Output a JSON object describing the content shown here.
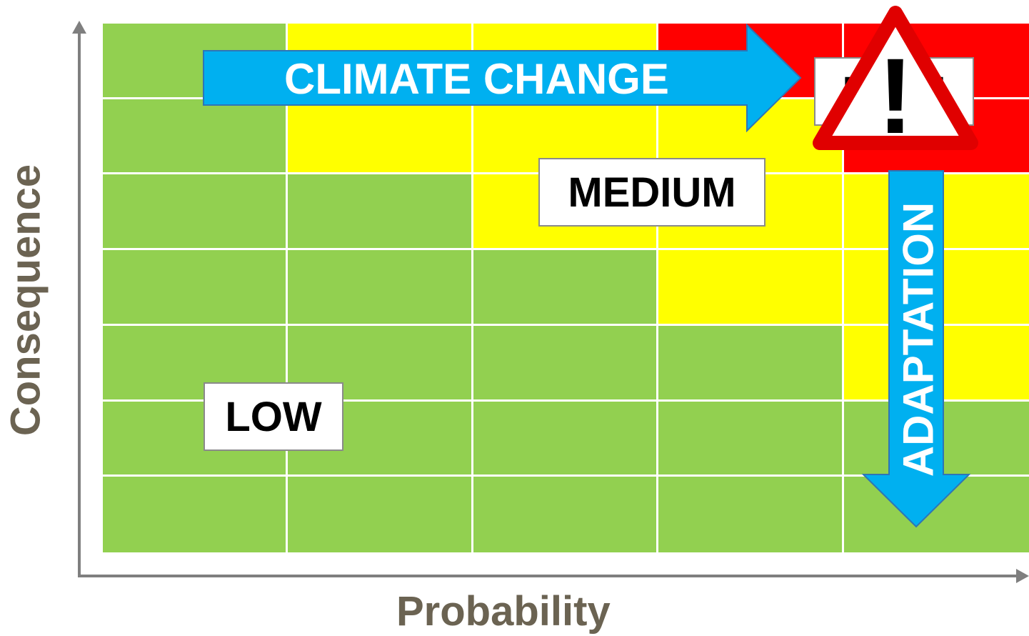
{
  "axes": {
    "x_title": "Probability",
    "y_title": "Consequence"
  },
  "matrix": {
    "cols": 5,
    "rows": 7,
    "colors": {
      "green": "#92d050",
      "yellow": "#ffff00",
      "red": "#ff0000"
    },
    "cells": [
      [
        "green",
        "yellow",
        "yellow",
        "red",
        "red"
      ],
      [
        "green",
        "yellow",
        "yellow",
        "yellow",
        "red"
      ],
      [
        "green",
        "green",
        "yellow",
        "yellow",
        "yellow"
      ],
      [
        "green",
        "green",
        "green",
        "yellow",
        "yellow"
      ],
      [
        "green",
        "green",
        "green",
        "green",
        "yellow"
      ],
      [
        "green",
        "green",
        "green",
        "green",
        "green"
      ],
      [
        "green",
        "green",
        "green",
        "green",
        "green"
      ]
    ]
  },
  "labels": {
    "low": "LOW",
    "medium": "MEDIUM",
    "high": "HIGH"
  },
  "arrows": {
    "climate_change": "CLIMATE CHANGE",
    "adaptation": "ADAPTATION",
    "color": "#00b0f0"
  },
  "warning": {
    "icon": "warning-triangle-icon",
    "symbol": "!",
    "border_color": "#e00000"
  }
}
